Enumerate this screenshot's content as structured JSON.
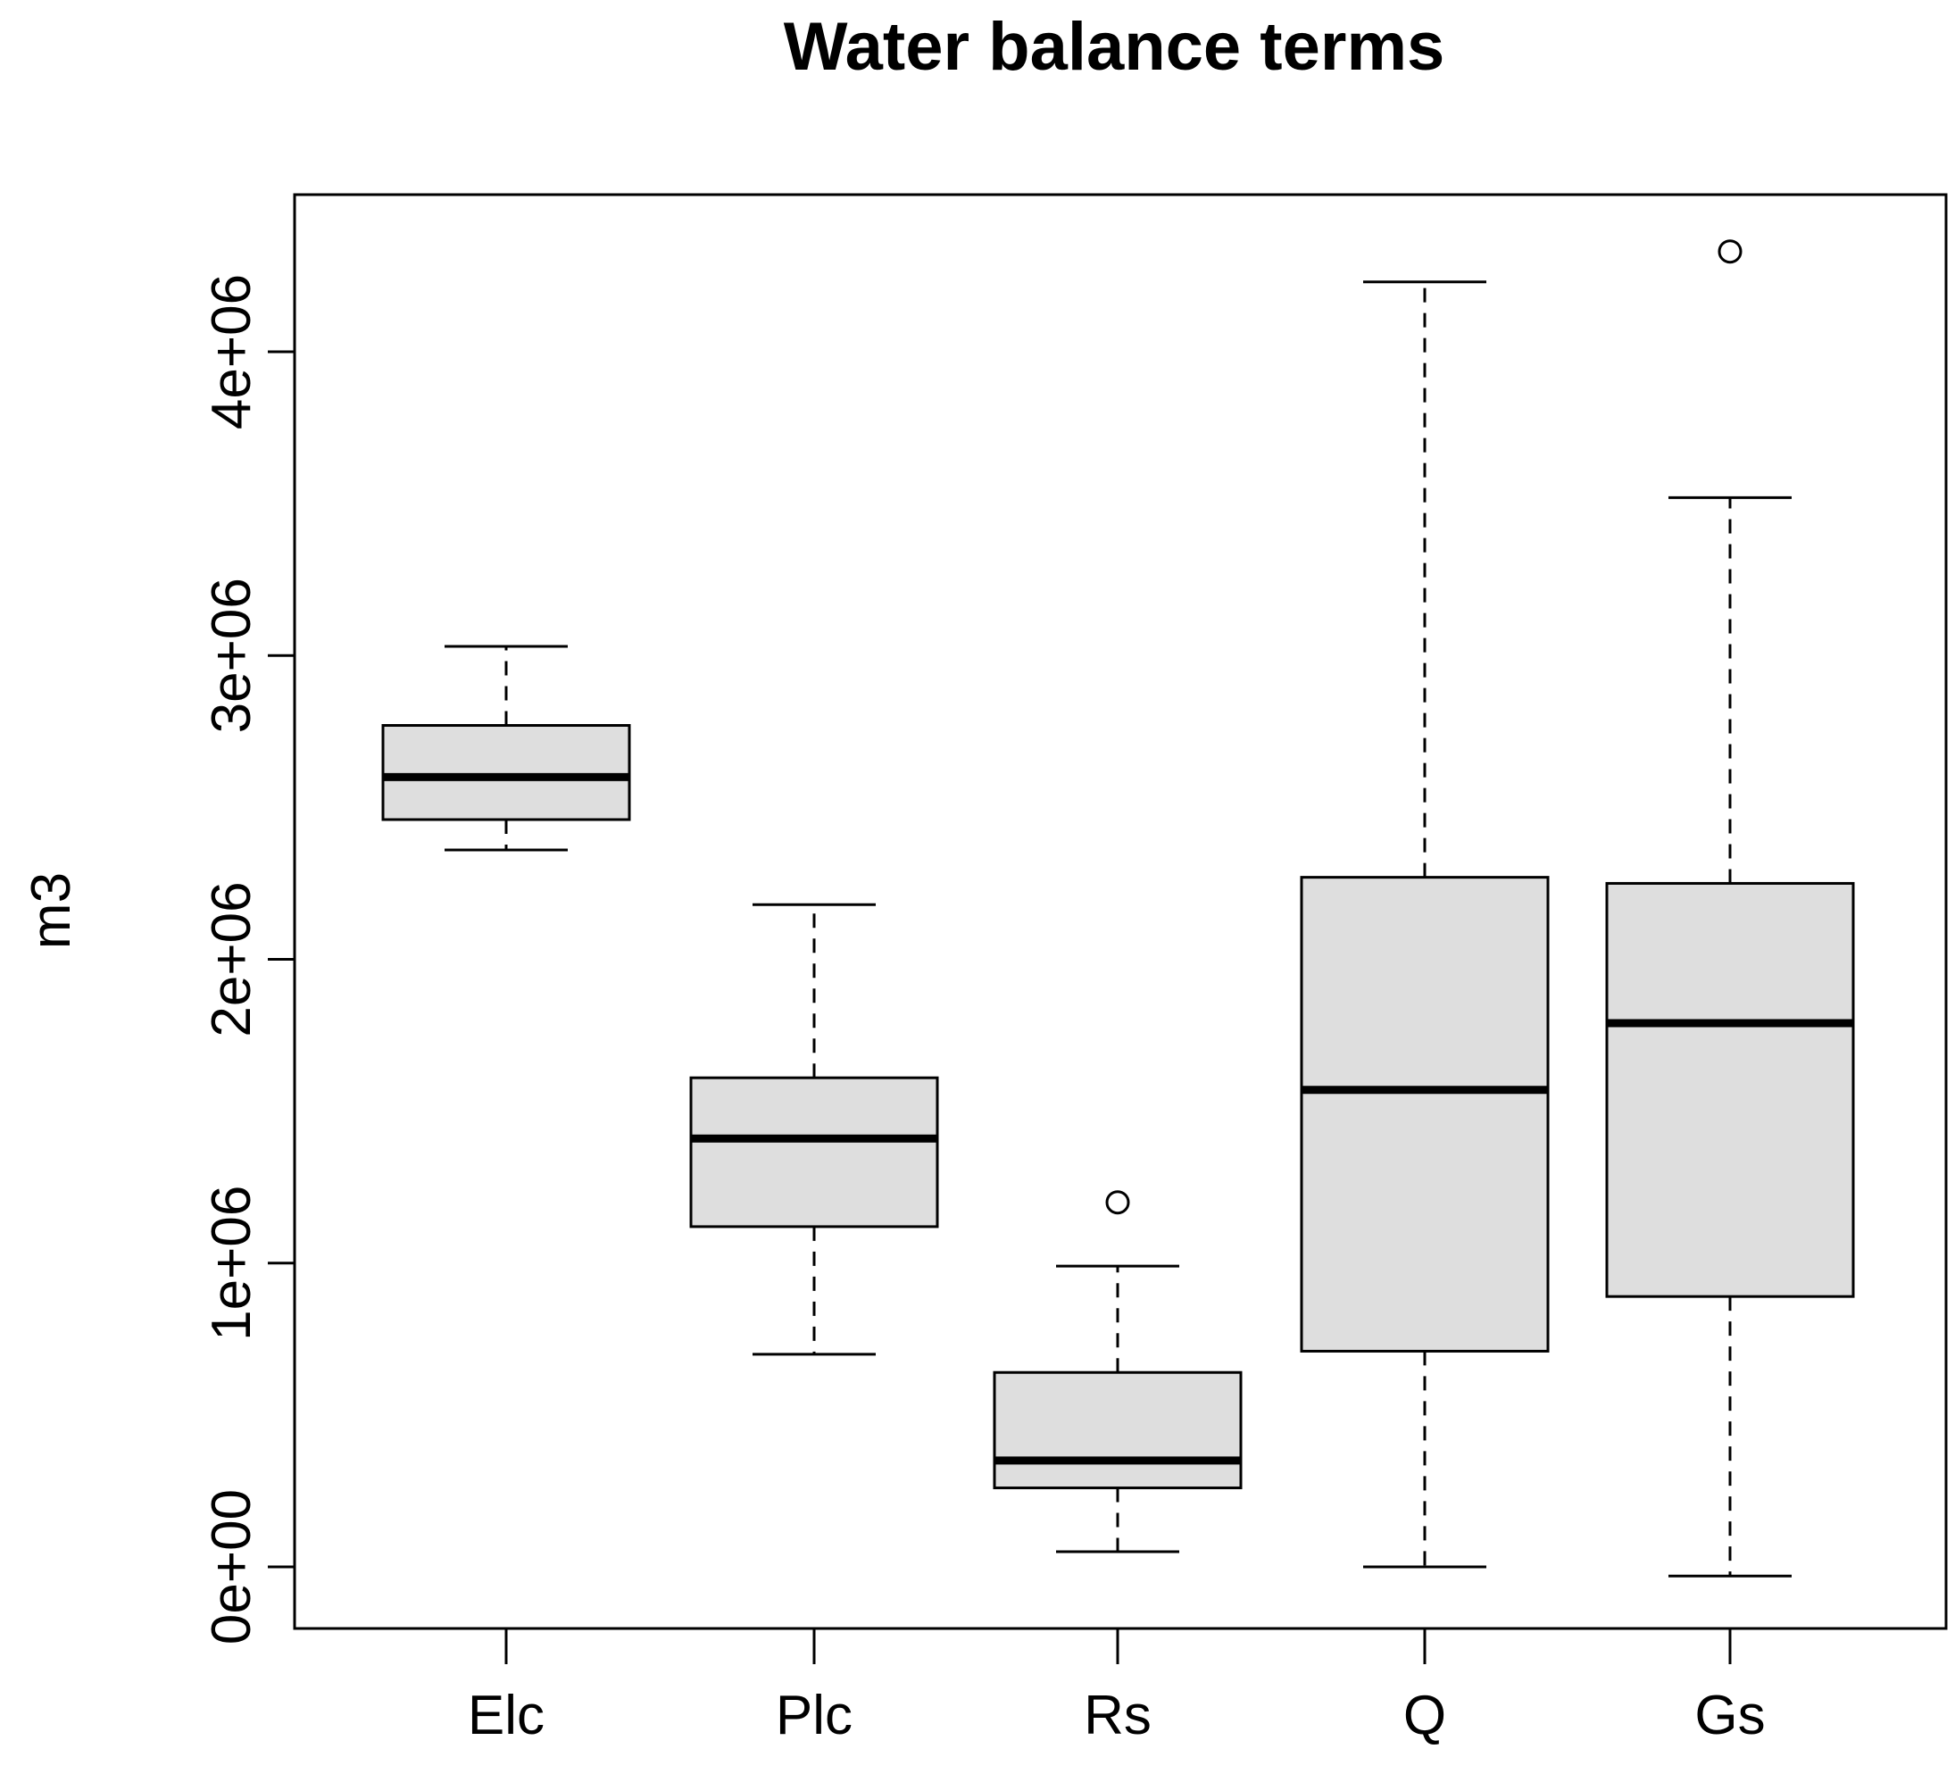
{
  "chart_data": {
    "type": "boxplot",
    "title": "Water balance terms",
    "xlabel": "",
    "ylabel": "m3",
    "ylim": [
      -200000,
      4500000
    ],
    "yticks": [
      0,
      1000000,
      2000000,
      3000000,
      4000000
    ],
    "ytick_labels": [
      "0e+00",
      "1e+06",
      "2e+06",
      "3e+06",
      "4e+06"
    ],
    "categories": [
      "Elc",
      "Plc",
      "Rs",
      "Q",
      "Gs"
    ],
    "boxes": [
      {
        "name": "Elc",
        "whisker_low": 2360000,
        "q1": 2460000,
        "median": 2600000,
        "q3": 2770000,
        "whisker_high": 3030000,
        "outliers": []
      },
      {
        "name": "Plc",
        "whisker_low": 700000,
        "q1": 1120000,
        "median": 1410000,
        "q3": 1610000,
        "whisker_high": 2180000,
        "outliers": []
      },
      {
        "name": "Rs",
        "whisker_low": 50000,
        "q1": 260000,
        "median": 350000,
        "q3": 640000,
        "whisker_high": 990000,
        "outliers": [
          1200000
        ]
      },
      {
        "name": "Q",
        "whisker_low": 0,
        "q1": 710000,
        "median": 1570000,
        "q3": 2270000,
        "whisker_high": 4230000,
        "outliers": []
      },
      {
        "name": "Gs",
        "whisker_low": -30000,
        "q1": 890000,
        "median": 1790000,
        "q3": 2250000,
        "whisker_high": 3520000,
        "outliers": [
          4330000
        ]
      }
    ],
    "box_fill": "#dedede",
    "grid": false,
    "legend": "none"
  }
}
